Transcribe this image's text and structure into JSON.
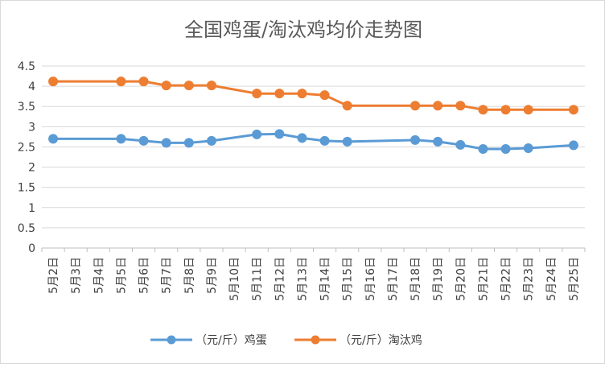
{
  "chart_data": {
    "type": "line",
    "title": "全国鸡蛋/淘汰鸡均价走势图",
    "categories": [
      "5月2日",
      "5月3日",
      "5月4日",
      "5月5日",
      "5月6日",
      "5月7日",
      "5月8日",
      "5月9日",
      "5月10日",
      "5月11日",
      "5月12日",
      "5月13日",
      "5月14日",
      "5月15日",
      "5月16日",
      "5月17日",
      "5月18日",
      "5月19日",
      "5月20日",
      "5月21日",
      "5月22日",
      "5月23日",
      "5月24日",
      "5月25日"
    ],
    "ylim": [
      0,
      4.5
    ],
    "yticks": [
      "0",
      "0.5",
      "1",
      "1.5",
      "2",
      "2.5",
      "3",
      "3.5",
      "4",
      "4.5"
    ],
    "grid": true,
    "legend_position": "bottom",
    "series": [
      {
        "name": "（元/斤）鸡蛋",
        "color": "#5b9bd5",
        "values": [
          2.7,
          null,
          null,
          2.7,
          2.65,
          2.6,
          2.6,
          2.65,
          null,
          2.81,
          2.82,
          2.72,
          2.65,
          2.63,
          null,
          null,
          2.67,
          2.63,
          2.55,
          2.45,
          2.45,
          2.47,
          null,
          2.54
        ]
      },
      {
        "name": "（元/斤）淘汰鸡",
        "color": "#ed7d31",
        "values": [
          4.12,
          null,
          null,
          4.12,
          4.12,
          4.02,
          4.02,
          4.02,
          null,
          3.82,
          3.82,
          3.82,
          3.78,
          3.52,
          null,
          null,
          3.52,
          3.52,
          3.52,
          3.42,
          3.42,
          3.42,
          null,
          3.42
        ]
      }
    ]
  }
}
